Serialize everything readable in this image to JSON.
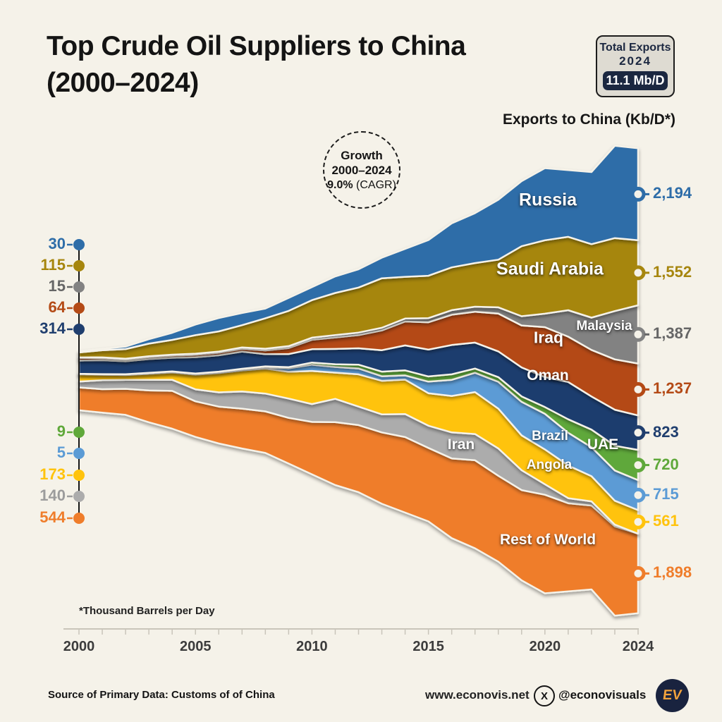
{
  "title": {
    "line1": "Top Crude Oil Suppliers to China",
    "line2": "(2000–2024)"
  },
  "badge": {
    "title": "Total Exports",
    "year": "2024",
    "value": "11.1 Mb/D"
  },
  "growth_circle": {
    "heading": "Growth",
    "range": "2000–2024",
    "value": "9.0%",
    "value_suffix": " (CAGR)"
  },
  "axis_title": "Exports to China (Kb/D*)",
  "footnote": "*Thousand Barrels per Day",
  "footer": {
    "source": "Source of Primary Data: Customs of of China",
    "website": "www.econovis.net",
    "x_icon": "X",
    "x_handle": "@econovisuals",
    "logo": "EV"
  },
  "x_axis": {
    "tick_labels": [
      "2000",
      "2005",
      "2010",
      "2015",
      "2020",
      "2024"
    ]
  },
  "colors": {
    "background": "#F5F2E9",
    "ink": "#141414",
    "badge_navy": "#1B2740",
    "logo_orange": "#F2A33C"
  },
  "chart_data": {
    "type": "area",
    "variant": "stacked-streamgraph-centered",
    "title": "Top Crude Oil Suppliers to China (2000–2024)",
    "unit": "Kb/D (Thousand Barrels per Day)",
    "x_range": [
      2000,
      2024
    ],
    "total_exports_2024": "11.1 Mb/D",
    "cagr_2000_2024": "9.0%",
    "legend_position": "start-and-end value labels on left/right axes",
    "x": [
      2000,
      2001,
      2002,
      2003,
      2004,
      2005,
      2006,
      2007,
      2008,
      2009,
      2010,
      2011,
      2012,
      2013,
      2014,
      2015,
      2016,
      2017,
      2018,
      2019,
      2020,
      2021,
      2022,
      2023,
      2024
    ],
    "series": [
      {
        "name": "Russia",
        "color": "#2E6DA8",
        "start_label": "30",
        "end_label": "2,194",
        "values": [
          30,
          35,
          60,
          105,
          170,
          255,
          320,
          290,
          233,
          310,
          310,
          395,
          435,
          490,
          665,
          850,
          1050,
          1190,
          1430,
          1550,
          1720,
          1590,
          1720,
          2200,
          2194
        ]
      },
      {
        "name": "Saudi Arabia",
        "color": "#A6860E",
        "start_label": "115",
        "end_label": "1,552",
        "values": [
          115,
          170,
          230,
          300,
          350,
          440,
          480,
          530,
          725,
          840,
          895,
          1005,
          1075,
          1180,
          995,
          1010,
          1020,
          1040,
          1135,
          1670,
          1750,
          1750,
          1750,
          1740,
          1552
        ]
      },
      {
        "name": "Malaysia",
        "color": "#828282",
        "label_color": "#666666",
        "start_label": "15",
        "end_label": "1,387",
        "values": [
          15,
          18,
          20,
          22,
          25,
          28,
          30,
          35,
          40,
          45,
          50,
          55,
          60,
          65,
          70,
          100,
          110,
          120,
          150,
          220,
          320,
          630,
          770,
          1150,
          1387
        ]
      },
      {
        "name": "Iraq",
        "color": "#B44A16",
        "start_label": "64",
        "end_label": "1,237",
        "values": [
          64,
          50,
          40,
          45,
          50,
          55,
          60,
          65,
          90,
          145,
          225,
          275,
          315,
          470,
          570,
          650,
          720,
          735,
          900,
          1000,
          1190,
          1080,
          1110,
          1200,
          1237
        ]
      },
      {
        "name": "Oman",
        "color": "#1F3E6E",
        "start_label": "314",
        "end_label": "823",
        "values": [
          314,
          330,
          310,
          330,
          325,
          390,
          390,
          410,
          290,
          310,
          318,
          365,
          390,
          510,
          595,
          640,
          700,
          620,
          615,
          690,
          715,
          890,
          790,
          860,
          823
        ]
      },
      {
        "name": "UAE",
        "color": "#5FA83A",
        "start_label": "9",
        "end_label": "720",
        "values": [
          9,
          10,
          12,
          14,
          15,
          15,
          18,
          20,
          25,
          30,
          50,
          65,
          90,
          110,
          120,
          125,
          130,
          100,
          110,
          130,
          160,
          320,
          420,
          590,
          720
        ]
      },
      {
        "name": "Brazil",
        "color": "#5B9BD5",
        "start_label": "5",
        "end_label": "715",
        "values": [
          5,
          5,
          6,
          8,
          10,
          12,
          15,
          20,
          30,
          80,
          150,
          135,
          140,
          110,
          100,
          275,
          385,
          460,
          640,
          800,
          850,
          780,
          690,
          720,
          715
        ]
      },
      {
        "name": "Angola",
        "color": "#FFC30D",
        "start_label": "173",
        "end_label": "561",
        "values": [
          173,
          130,
          115,
          145,
          175,
          350,
          460,
          500,
          595,
          640,
          790,
          625,
          770,
          800,
          820,
          775,
          870,
          1000,
          950,
          830,
          830,
          780,
          600,
          570,
          561
        ]
      },
      {
        "name": "Iran",
        "color": "#ACACAC",
        "label_color": "#9C9C9C",
        "start_label": "140",
        "end_label": null,
        "values": [
          140,
          215,
          215,
          250,
          265,
          285,
          340,
          410,
          425,
          460,
          425,
          555,
          440,
          430,
          550,
          530,
          620,
          625,
          650,
          475,
          250,
          120,
          100,
          40,
          0
        ]
      },
      {
        "name": "Rest of World",
        "color": "#EF7D2B",
        "start_label": "544",
        "end_label": "1,898",
        "values": [
          544,
          560,
          620,
          760,
          900,
          850,
          880,
          950,
          990,
          1090,
          1250,
          1500,
          1600,
          1700,
          1800,
          1750,
          1900,
          2100,
          2050,
          2150,
          2350,
          2100,
          2000,
          2130,
          1898
        ]
      }
    ]
  }
}
